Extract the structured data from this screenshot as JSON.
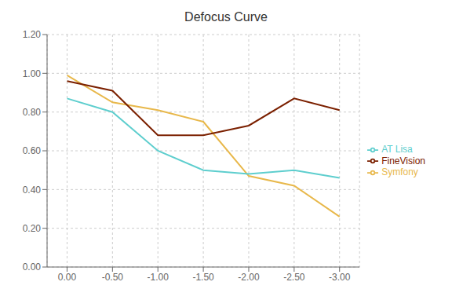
{
  "chart_data": {
    "type": "line",
    "title": "Defocus Curve",
    "x": [
      0.0,
      -0.5,
      -1.0,
      -1.5,
      -2.0,
      -2.5,
      -3.0
    ],
    "series": [
      {
        "name": "Symfony",
        "color": "#E8B84B",
        "values": [
          0.99,
          0.85,
          0.81,
          0.75,
          0.47,
          0.42,
          0.26
        ]
      },
      {
        "name": "AT Lisa",
        "color": "#5ECECE",
        "values": [
          0.87,
          0.8,
          0.6,
          0.5,
          0.48,
          0.5,
          0.46
        ]
      },
      {
        "name": "FineVision",
        "color": "#7B2000",
        "values": [
          0.96,
          0.91,
          0.68,
          0.68,
          0.73,
          0.87,
          0.81
        ]
      }
    ],
    "xlim": [
      0.22,
      -3.22
    ],
    "xticks": [
      {
        "value": 0.0,
        "label": "0.00"
      },
      {
        "value": -0.5,
        "label": "-0.50"
      },
      {
        "value": -1.0,
        "label": "-1.00"
      },
      {
        "value": -1.5,
        "label": "-1.50"
      },
      {
        "value": -2.0,
        "label": "-2.00"
      },
      {
        "value": -2.5,
        "label": "-2.50"
      },
      {
        "value": -3.0,
        "label": "-3.00"
      }
    ],
    "ylim": [
      0.0,
      1.2
    ],
    "yticks": [
      {
        "value": 0.0,
        "label": "0.00"
      },
      {
        "value": 0.2,
        "label": "0.20"
      },
      {
        "value": 0.4,
        "label": "0.40"
      },
      {
        "value": 0.6,
        "label": "0.60"
      },
      {
        "value": 0.8,
        "label": "0.80"
      },
      {
        "value": 1.0,
        "label": "1.00"
      },
      {
        "value": 1.2,
        "label": "1.20"
      }
    ],
    "grid": true,
    "legend": "right"
  }
}
